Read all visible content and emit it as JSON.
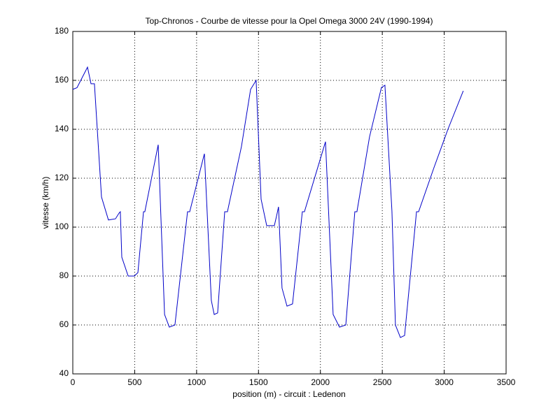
{
  "chart_data": {
    "type": "line",
    "title": "Top-Chronos - Courbe de vitesse pour la Opel Omega 3000 24V (1990-1994)",
    "x_label": "position (m) - circuit : Ledenon",
    "y_label": "vitesse (km/h)",
    "xlim": [
      0,
      3500
    ],
    "xticks": [
      0,
      500,
      1000,
      1500,
      2000,
      2500,
      3000,
      3500
    ],
    "ylim": [
      40,
      180
    ],
    "yticks": [
      40,
      60,
      80,
      100,
      120,
      140,
      160,
      180
    ],
    "grid": true,
    "x": [
      0,
      34,
      119,
      147,
      175,
      232,
      288,
      345,
      373,
      384,
      396,
      447,
      497,
      526,
      571,
      582,
      690,
      741,
      780,
      825,
      927,
      944,
      1063,
      1119,
      1142,
      1170,
      1227,
      1249,
      1362,
      1436,
      1481,
      1521,
      1566,
      1628,
      1645,
      1662,
      1690,
      1730,
      1775,
      1854,
      1871,
      2041,
      2103,
      2154,
      2205,
      2278,
      2295,
      2397,
      2493,
      2521,
      2578,
      2606,
      2646,
      2680,
      2776,
      2793,
      2917,
      3030,
      3154
    ],
    "series": [
      {
        "name": "vitesse",
        "color": "#0000c8",
        "values": [
          156.3,
          157,
          165.4,
          158.6,
          158.6,
          112.3,
          102.9,
          103.4,
          105.7,
          106.3,
          87.7,
          80,
          80,
          81.4,
          106.3,
          106.3,
          133.7,
          64.3,
          59.1,
          60,
          106.3,
          106.3,
          130,
          70,
          64.3,
          64.9,
          106.3,
          106.3,
          132.9,
          156.3,
          160,
          111.4,
          100.6,
          100.6,
          104.3,
          108.3,
          75.1,
          67.7,
          68.6,
          106.3,
          106.3,
          134.9,
          64.3,
          59.1,
          60,
          106.3,
          106.3,
          136.9,
          157.1,
          158,
          106.6,
          60,
          54.9,
          55.7,
          106.3,
          106.3,
          124.3,
          140,
          155.7
        ]
      }
    ]
  }
}
